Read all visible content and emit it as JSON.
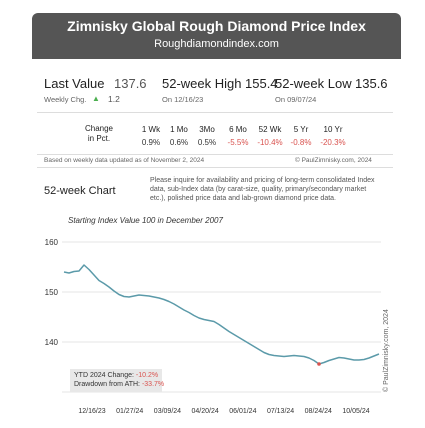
{
  "title": "Zimnisky Global Rough Diamond Price Index",
  "subtitle": "Roughdiamondindex.com",
  "last_value": {
    "label": "Last Value",
    "value": "137.6",
    "weekly_label": "Weekly Chg.",
    "weekly_arrow": "▲",
    "weekly_value": "1.2"
  },
  "high": {
    "label": "52-week High",
    "value": "155.4",
    "date": "On 12/16/23"
  },
  "low": {
    "label": "52-week Low",
    "value": "135.6",
    "date": "On 09/07/24"
  },
  "change": {
    "label_line1": "Change",
    "label_line2": "in Pct.",
    "periods": [
      "1 Wk",
      "1 Mo",
      "3Mo",
      "6 Mo",
      "52 Wk",
      "5 Yr",
      "10 Yr"
    ],
    "values": [
      "0.9%",
      "0.6%",
      "0.5%",
      "-5.5%",
      "-10.4%",
      "-0.8%",
      "-20.3%"
    ]
  },
  "footnote": "Based on weekly data updated as of November 2, 2024",
  "copyright": "© PaulZimnisky.com, 2024",
  "chart_title": "52-week Chart",
  "inquiry": "Please inquire for availability and pricing of long-term consolidated Index data, sub-Index data (by carat-size, quality, primary/secondary market etc.), polished price data and lab-grown diamond price data.",
  "stats": {
    "ytd_label": "YTD 2024 Change:",
    "ytd_value": "-10.2%",
    "ath_label": "Drawdown from ATH:",
    "ath_value": "-33.7%"
  },
  "watermark": "© PaulZimnisky.com, 2024",
  "colors": {
    "header_bg": "#555555",
    "line": "#5b9aa9",
    "negative": "#d9534f",
    "positive_arrow": "#4caf50"
  },
  "chart_data": {
    "type": "line",
    "title": "Starting Index Value 100 in December 2007",
    "xlabel": "",
    "ylabel": "",
    "ylim": [
      130,
      162
    ],
    "yticks": [
      130,
      140,
      150,
      160
    ],
    "x_tick_labels": [
      "12/16/23",
      "01/27/24",
      "03/09/24",
      "04/20/24",
      "06/01/24",
      "07/13/24",
      "08/24/24",
      "10/05/24"
    ],
    "grid": true,
    "series": [
      {
        "values": [
          154,
          153.8,
          154.1,
          154.2,
          155.4,
          154.5,
          153.4,
          152.3,
          151.7,
          151,
          150.2,
          149.5,
          149.1,
          149,
          149.2,
          149.4,
          149.3,
          149.2,
          149,
          148.8,
          148.5,
          148.1,
          147.6,
          147,
          146.4,
          145.9,
          145.3,
          144.8,
          144.5,
          144.3,
          144.1,
          143.5,
          142.8,
          142.1,
          141.5,
          140.9,
          140.3,
          139.7,
          139.1,
          138.5,
          137.9,
          137.5,
          137.3,
          137.2,
          137.1,
          137.2,
          137.3,
          137.2,
          137.1,
          136.8,
          136.3,
          135.6,
          135.9,
          136.3,
          136.6,
          136.9,
          136.8,
          136.6,
          136.4,
          136.4,
          136.5,
          136.8,
          137.2,
          137.6
        ],
        "markers": [
          {
            "index": 51,
            "value": 135.6
          }
        ]
      }
    ]
  }
}
